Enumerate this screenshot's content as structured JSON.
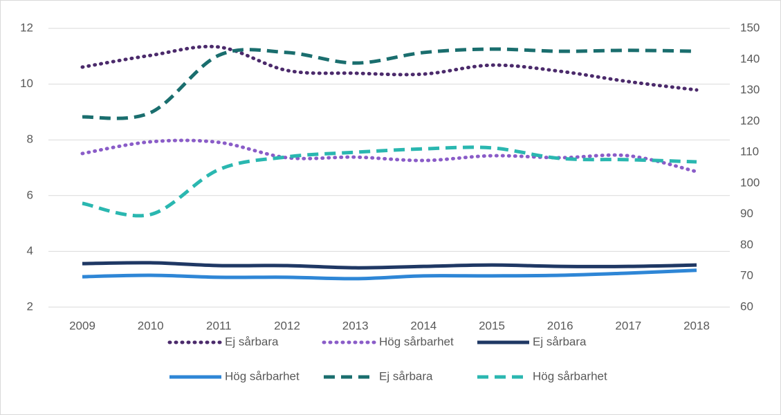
{
  "chart_data": {
    "type": "line",
    "categories": [
      "2009",
      "2010",
      "2011",
      "2012",
      "2013",
      "2014",
      "2015",
      "2016",
      "2017",
      "2018"
    ],
    "ylim": [
      2,
      12
    ],
    "yticks": [
      2,
      4,
      6,
      8,
      10,
      12
    ],
    "y2lim": [
      60,
      150
    ],
    "y2ticks": [
      60,
      70,
      80,
      90,
      100,
      110,
      120,
      130,
      140,
      150
    ],
    "grid": true,
    "series": [
      {
        "name": "Ej sårbara",
        "color": "#4b2a6b",
        "style": "dotted",
        "values": [
          10.61,
          11.03,
          11.33,
          10.49,
          10.39,
          10.36,
          10.68,
          10.46,
          10.09,
          9.79
        ]
      },
      {
        "name": "Hög sårbarhet",
        "color": "#8a5cc8",
        "style": "dotted",
        "values": [
          7.51,
          7.93,
          7.91,
          7.36,
          7.38,
          7.26,
          7.43,
          7.36,
          7.43,
          6.86
        ]
      },
      {
        "name": "Ej sårbara",
        "color": "#1f3864",
        "style": "solid",
        "values": [
          3.56,
          3.59,
          3.49,
          3.49,
          3.41,
          3.46,
          3.51,
          3.46,
          3.46,
          3.51
        ]
      },
      {
        "name": "Hög sårbarhet",
        "color": "#2e86d6",
        "style": "solid",
        "values": [
          3.09,
          3.14,
          3.07,
          3.07,
          3.02,
          3.12,
          3.12,
          3.14,
          3.22,
          3.32
        ]
      },
      {
        "name": "Ej sårbara",
        "color": "#1a6e6e",
        "style": "dashed",
        "axis": "y2",
        "values": [
          121.4,
          122.8,
          141.3,
          142.2,
          138.8,
          142.2,
          143.3,
          142.6,
          142.9,
          142.6
        ]
      },
      {
        "name": "Hög sårbarhet",
        "color": "#2ab7b0",
        "style": "dashed",
        "axis": "y2",
        "values": [
          93.5,
          89.9,
          104.4,
          108.5,
          110.0,
          111.1,
          111.4,
          108.0,
          107.6,
          106.9
        ]
      }
    ]
  }
}
